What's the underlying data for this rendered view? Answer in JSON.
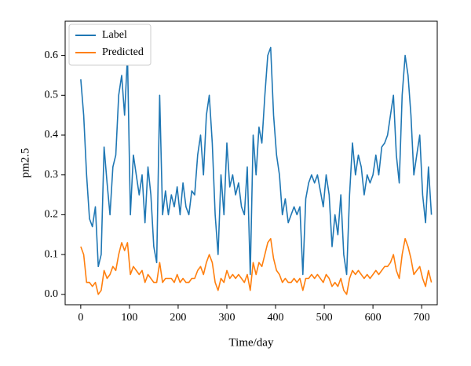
{
  "chart_data": {
    "type": "line",
    "xlabel": "Time/day",
    "ylabel": "pm2.5",
    "x": [
      0,
      6,
      12,
      18,
      24,
      30,
      36,
      42,
      48,
      54,
      60,
      66,
      72,
      78,
      84,
      90,
      96,
      102,
      108,
      114,
      120,
      126,
      132,
      138,
      144,
      150,
      156,
      162,
      168,
      174,
      180,
      186,
      192,
      198,
      204,
      210,
      216,
      222,
      228,
      234,
      240,
      246,
      252,
      258,
      264,
      270,
      276,
      282,
      288,
      294,
      300,
      306,
      312,
      318,
      324,
      330,
      336,
      342,
      348,
      354,
      360,
      366,
      372,
      378,
      384,
      390,
      396,
      402,
      408,
      414,
      420,
      426,
      432,
      438,
      444,
      450,
      456,
      462,
      468,
      474,
      480,
      486,
      492,
      498,
      504,
      510,
      516,
      522,
      528,
      534,
      540,
      546,
      552,
      558,
      564,
      570,
      576,
      582,
      588,
      594,
      600,
      606,
      612,
      618,
      624,
      630,
      636,
      642,
      648,
      654,
      660,
      666,
      672,
      678,
      684,
      690,
      696,
      702,
      708,
      714,
      720
    ],
    "series": [
      {
        "name": "Label",
        "color": "#1f77b4",
        "values": [
          0.54,
          0.45,
          0.3,
          0.19,
          0.17,
          0.22,
          0.07,
          0.1,
          0.37,
          0.28,
          0.2,
          0.32,
          0.35,
          0.5,
          0.55,
          0.45,
          0.6,
          0.2,
          0.35,
          0.3,
          0.25,
          0.3,
          0.18,
          0.32,
          0.25,
          0.12,
          0.08,
          0.5,
          0.2,
          0.26,
          0.2,
          0.25,
          0.22,
          0.27,
          0.2,
          0.28,
          0.22,
          0.2,
          0.26,
          0.25,
          0.35,
          0.4,
          0.3,
          0.45,
          0.5,
          0.38,
          0.2,
          0.1,
          0.3,
          0.2,
          0.38,
          0.27,
          0.3,
          0.25,
          0.28,
          0.22,
          0.2,
          0.32,
          0.05,
          0.4,
          0.3,
          0.42,
          0.38,
          0.5,
          0.6,
          0.62,
          0.45,
          0.35,
          0.3,
          0.2,
          0.24,
          0.18,
          0.2,
          0.22,
          0.2,
          0.22,
          0.05,
          0.24,
          0.28,
          0.3,
          0.28,
          0.3,
          0.26,
          0.22,
          0.3,
          0.25,
          0.12,
          0.2,
          0.15,
          0.25,
          0.1,
          0.05,
          0.25,
          0.38,
          0.3,
          0.35,
          0.32,
          0.25,
          0.3,
          0.28,
          0.3,
          0.35,
          0.3,
          0.37,
          0.38,
          0.4,
          0.45,
          0.5,
          0.35,
          0.28,
          0.5,
          0.6,
          0.55,
          0.45,
          0.3,
          0.35,
          0.4,
          0.25,
          0.18,
          0.32,
          0.2
        ]
      },
      {
        "name": "Predicted",
        "color": "#ff7f0e",
        "values": [
          0.12,
          0.1,
          0.03,
          0.03,
          0.02,
          0.03,
          0.0,
          0.01,
          0.06,
          0.04,
          0.05,
          0.07,
          0.06,
          0.1,
          0.13,
          0.11,
          0.13,
          0.05,
          0.07,
          0.06,
          0.05,
          0.06,
          0.03,
          0.05,
          0.04,
          0.03,
          0.03,
          0.08,
          0.03,
          0.04,
          0.04,
          0.04,
          0.03,
          0.05,
          0.03,
          0.04,
          0.03,
          0.03,
          0.04,
          0.04,
          0.06,
          0.07,
          0.05,
          0.08,
          0.1,
          0.08,
          0.03,
          0.01,
          0.04,
          0.03,
          0.06,
          0.04,
          0.05,
          0.04,
          0.05,
          0.04,
          0.03,
          0.05,
          0.01,
          0.08,
          0.05,
          0.08,
          0.07,
          0.1,
          0.13,
          0.14,
          0.09,
          0.06,
          0.05,
          0.03,
          0.04,
          0.03,
          0.03,
          0.04,
          0.03,
          0.04,
          0.01,
          0.04,
          0.04,
          0.05,
          0.04,
          0.05,
          0.04,
          0.03,
          0.05,
          0.04,
          0.02,
          0.03,
          0.02,
          0.04,
          0.01,
          0.0,
          0.04,
          0.06,
          0.05,
          0.06,
          0.05,
          0.04,
          0.05,
          0.04,
          0.05,
          0.06,
          0.05,
          0.06,
          0.07,
          0.07,
          0.08,
          0.1,
          0.06,
          0.04,
          0.1,
          0.14,
          0.12,
          0.09,
          0.05,
          0.06,
          0.07,
          0.04,
          0.02,
          0.06,
          0.03
        ]
      }
    ],
    "xlim": [
      -32,
      732
    ],
    "xticks": [
      0,
      100,
      200,
      300,
      400,
      500,
      600,
      700
    ],
    "ylim": [
      -0.026,
      0.686
    ],
    "yticks": [
      {
        "value": 0,
        "label": "0.0"
      },
      0.1,
      0.2,
      0.3,
      0.4,
      0.5,
      0.6
    ],
    "legend": "upper left"
  }
}
